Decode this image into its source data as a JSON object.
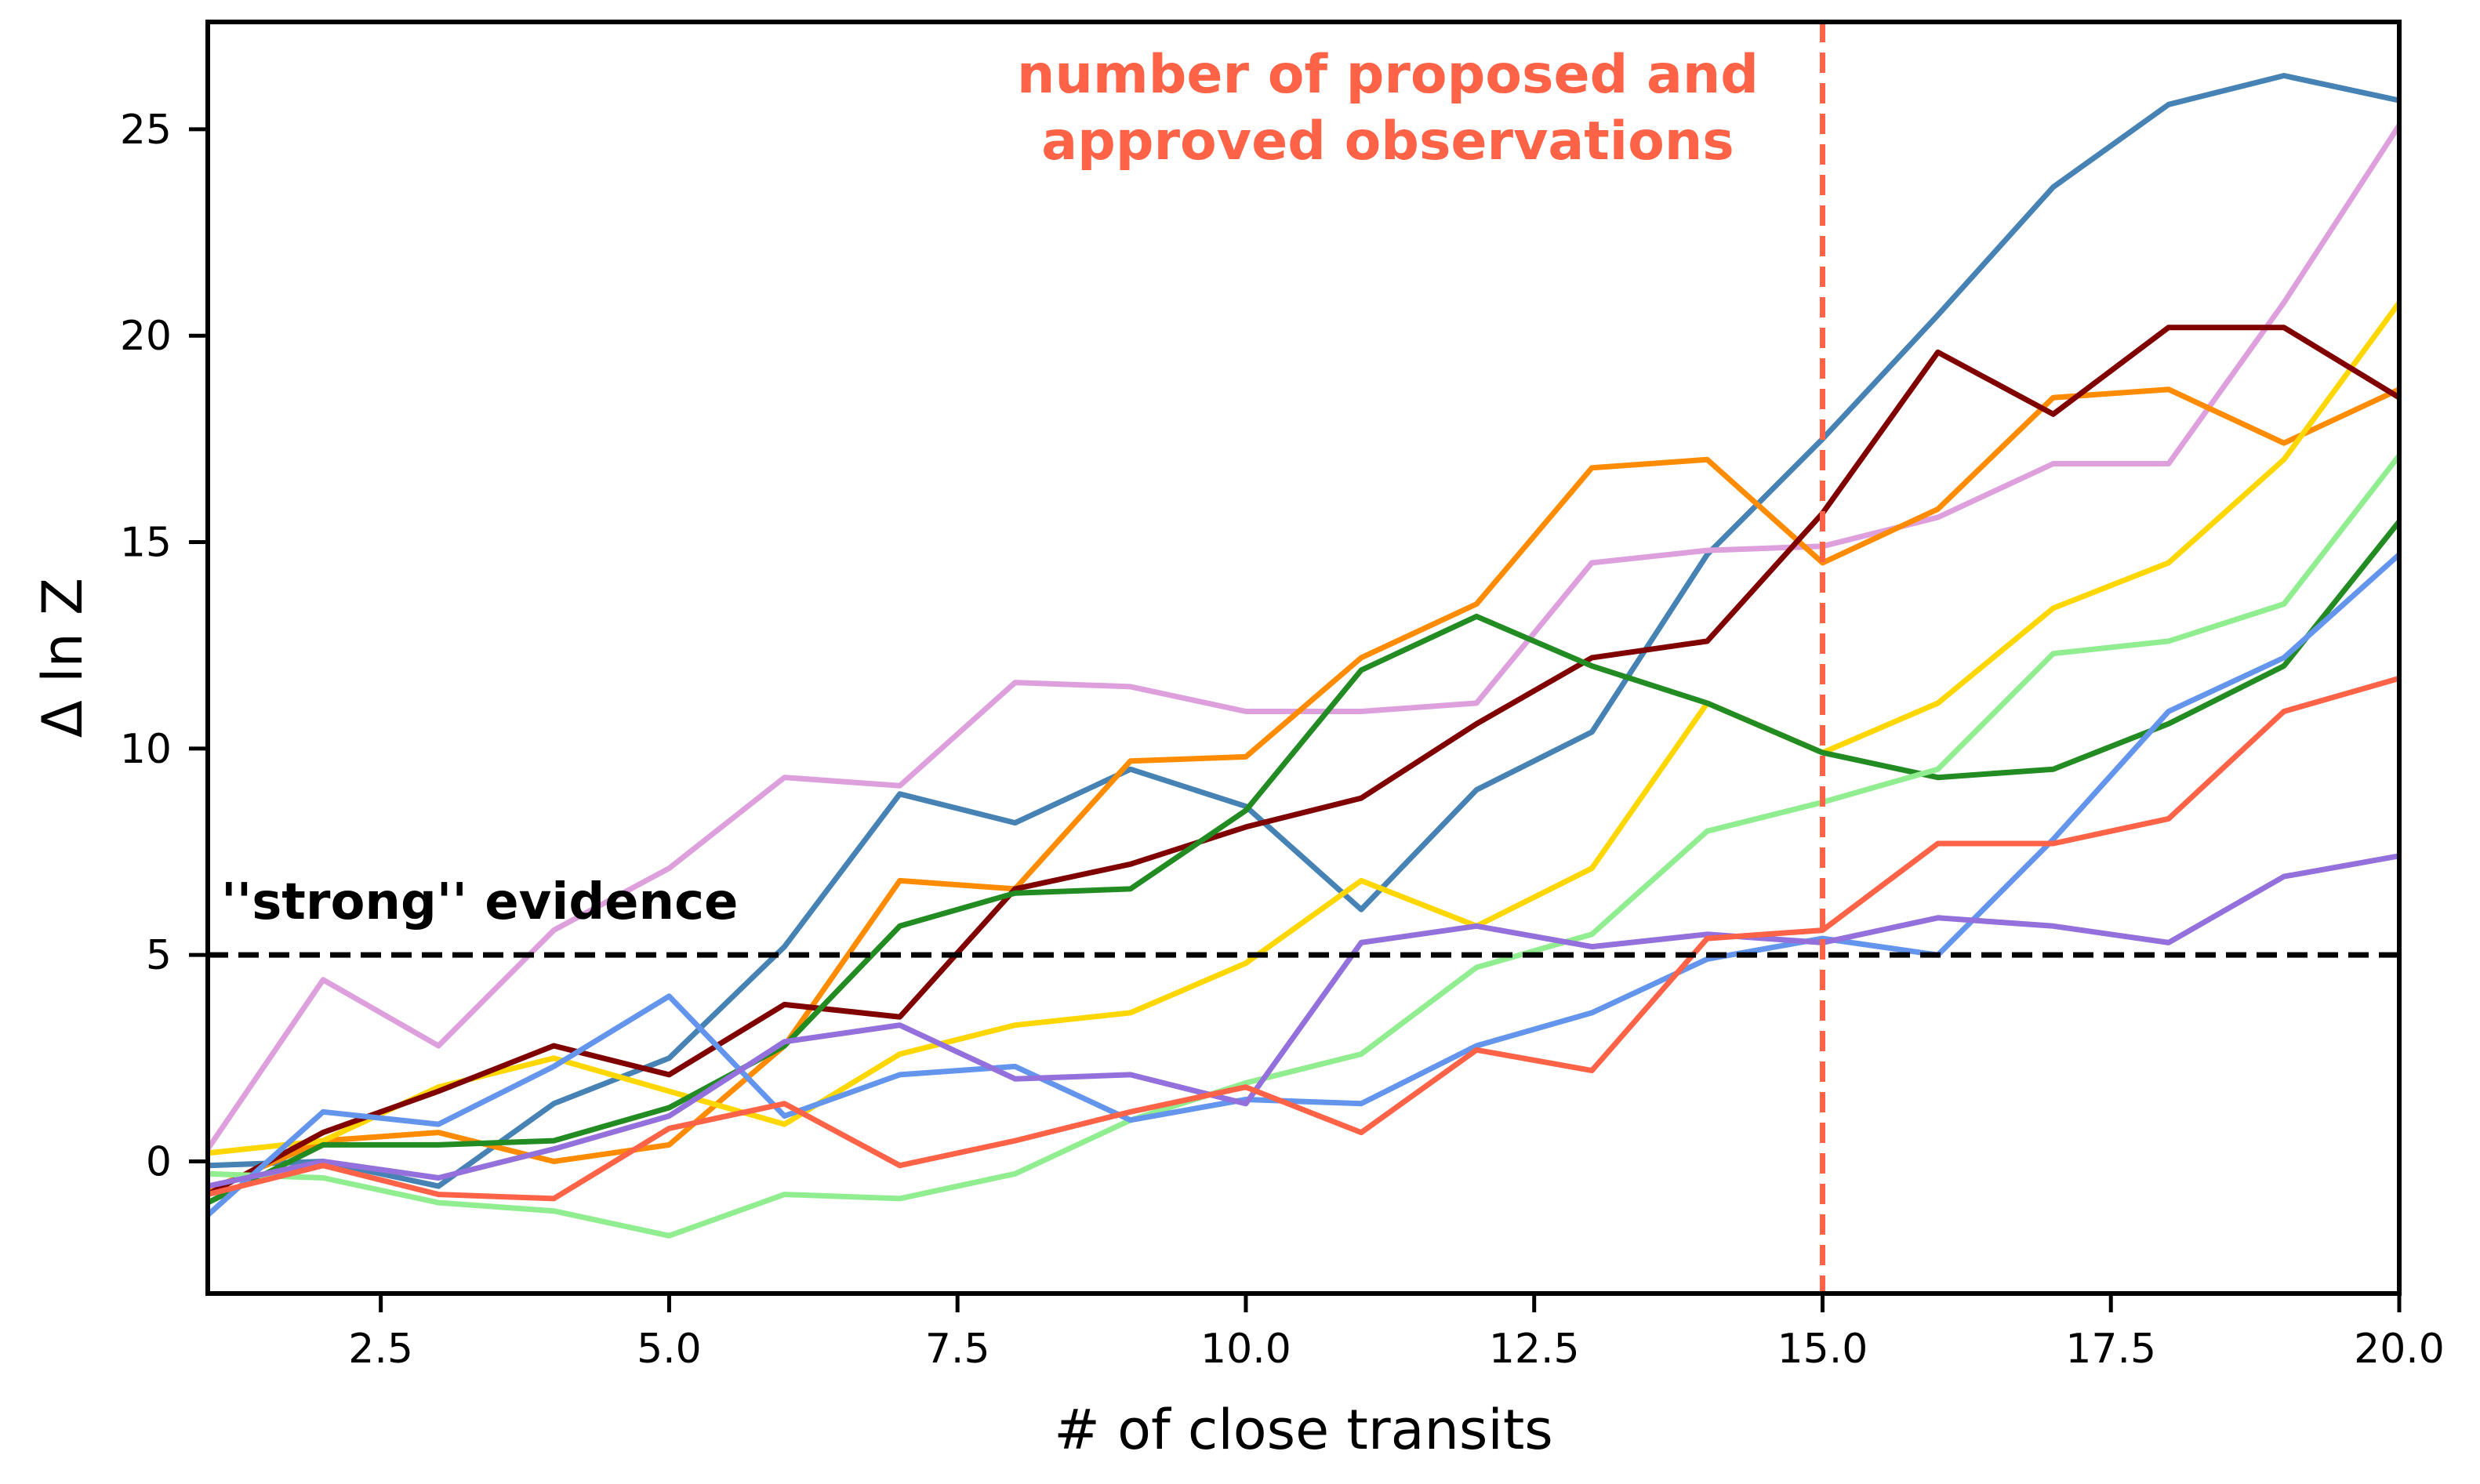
{
  "chart_data": {
    "type": "line",
    "title": "",
    "xlabel": "# of close transits",
    "ylabel": "Δ ln Z",
    "xlim": [
      1,
      20
    ],
    "ylim": [
      -3.2,
      27.6
    ],
    "xticks": [
      2.5,
      5.0,
      7.5,
      10.0,
      12.5,
      15.0,
      17.5,
      20.0
    ],
    "xtick_labels": [
      "2.5",
      "5.0",
      "7.5",
      "10.0",
      "12.5",
      "15.0",
      "17.5",
      "20.0"
    ],
    "yticks": [
      0,
      5,
      10,
      15,
      20,
      25
    ],
    "ytick_labels": [
      "0",
      "5",
      "10",
      "15",
      "20",
      "25"
    ],
    "grid": false,
    "x": [
      1,
      2,
      3,
      4,
      5,
      6,
      7,
      8,
      9,
      10,
      11,
      12,
      13,
      14,
      15,
      16,
      17,
      18,
      19,
      20
    ],
    "series": [
      {
        "name": "steelblue",
        "color": "#4682b4",
        "values": [
          -0.1,
          0.0,
          -0.6,
          1.4,
          2.5,
          5.2,
          8.9,
          8.2,
          9.5,
          8.6,
          6.1,
          9.0,
          10.4,
          14.7,
          17.5,
          20.5,
          23.6,
          25.6,
          26.3,
          25.7
        ]
      },
      {
        "name": "plum",
        "color": "#dda0dd",
        "values": [
          0.3,
          4.4,
          2.8,
          5.6,
          7.1,
          9.3,
          9.1,
          11.6,
          11.5,
          10.9,
          10.9,
          11.1,
          14.5,
          14.8,
          14.9,
          15.6,
          16.9,
          16.9,
          20.8,
          25.1
        ]
      },
      {
        "name": "darkorange",
        "color": "#ff8c00",
        "values": [
          -0.7,
          0.5,
          0.7,
          0.0,
          0.4,
          2.8,
          6.8,
          6.6,
          9.7,
          9.8,
          12.2,
          13.5,
          16.8,
          17.0,
          14.5,
          15.8,
          18.5,
          18.7,
          17.4,
          18.7
        ]
      },
      {
        "name": "gold",
        "color": "#ffd700",
        "values": [
          0.2,
          0.5,
          1.8,
          2.5,
          1.7,
          0.9,
          2.6,
          3.3,
          3.6,
          4.8,
          6.8,
          5.7,
          7.1,
          11.1,
          9.9,
          11.1,
          13.4,
          14.5,
          17.0,
          20.8
        ]
      },
      {
        "name": "maroon",
        "color": "#800000",
        "values": [
          -0.8,
          0.7,
          1.7,
          2.8,
          2.1,
          3.8,
          3.5,
          6.6,
          7.2,
          8.1,
          8.8,
          10.6,
          12.2,
          12.6,
          15.7,
          19.6,
          18.1,
          20.2,
          20.2,
          18.5
        ]
      },
      {
        "name": "forestgreen",
        "color": "#228b22",
        "values": [
          -1.0,
          0.4,
          0.4,
          0.5,
          1.3,
          2.8,
          5.7,
          6.5,
          6.6,
          8.5,
          11.9,
          13.2,
          12.0,
          11.1,
          9.9,
          9.3,
          9.5,
          10.6,
          12.0,
          15.5
        ]
      },
      {
        "name": "lightgreen",
        "color": "#90ee90",
        "values": [
          -0.3,
          -0.4,
          -1.0,
          -1.2,
          -1.8,
          -0.8,
          -0.9,
          -0.3,
          1.0,
          1.9,
          2.6,
          4.7,
          5.5,
          8.0,
          8.7,
          9.5,
          12.3,
          12.6,
          13.5,
          17.1
        ]
      },
      {
        "name": "cornflowerblue",
        "color": "#6495ed",
        "values": [
          -1.3,
          1.2,
          0.9,
          2.3,
          4.0,
          1.1,
          2.1,
          2.3,
          1.0,
          1.5,
          1.4,
          2.8,
          3.6,
          4.9,
          5.4,
          5.0,
          7.8,
          10.9,
          12.2,
          14.7
        ]
      },
      {
        "name": "mediumpurple",
        "color": "#9370db",
        "values": [
          -0.6,
          0.0,
          -0.4,
          0.3,
          1.1,
          2.9,
          3.3,
          2.0,
          2.1,
          1.4,
          5.3,
          5.7,
          5.2,
          5.5,
          5.3,
          5.9,
          5.7,
          5.3,
          6.9,
          7.4
        ]
      },
      {
        "name": "tomato",
        "color": "#ff6347",
        "values": [
          -0.8,
          -0.1,
          -0.8,
          -0.9,
          0.8,
          1.4,
          -0.1,
          0.5,
          1.2,
          1.8,
          0.7,
          2.7,
          2.2,
          5.4,
          5.6,
          7.7,
          7.7,
          8.3,
          10.9,
          11.7
        ]
      }
    ],
    "reference_lines": {
      "horizontal": {
        "y": 5,
        "color": "#000000",
        "label": "''strong'' evidence"
      },
      "vertical": {
        "x": 15,
        "color": "#ff6347",
        "label_line1": "number of proposed and",
        "label_line2": "approved observations"
      }
    }
  }
}
